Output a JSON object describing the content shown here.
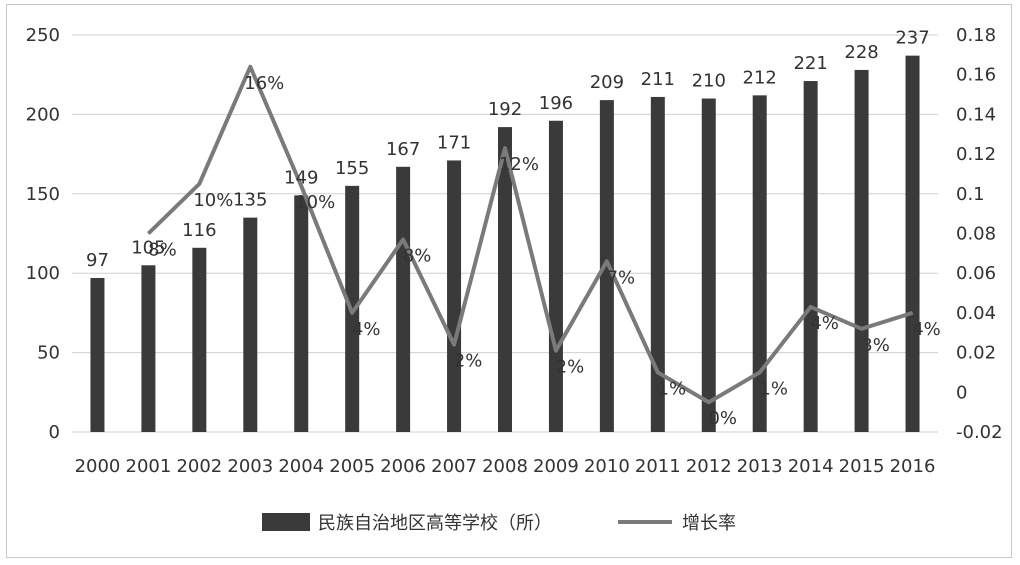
{
  "chart_data": {
    "type": "bar",
    "categories": [
      "2000",
      "2001",
      "2002",
      "2003",
      "2004",
      "2005",
      "2006",
      "2007",
      "2008",
      "2009",
      "2010",
      "2011",
      "2012",
      "2013",
      "2014",
      "2015",
      "2016"
    ],
    "series": [
      {
        "name": "民族自治地区高等学校（所）",
        "type": "bar",
        "axis": "left",
        "values": [
          97,
          105,
          116,
          135,
          149,
          155,
          167,
          171,
          192,
          196,
          209,
          211,
          210,
          212,
          221,
          228,
          237
        ],
        "labels": [
          "97",
          "105",
          "116",
          "135",
          "149",
          "155",
          "167",
          "171",
          "192",
          "196",
          "209",
          "211",
          "210",
          "212",
          "221",
          "228",
          "237"
        ]
      },
      {
        "name": "增长率",
        "type": "line",
        "axis": "right",
        "values": [
          null,
          0.08,
          0.105,
          0.164,
          0.104,
          0.04,
          0.077,
          0.024,
          0.123,
          0.021,
          0.066,
          0.01,
          -0.005,
          0.01,
          0.043,
          0.032,
          0.04
        ],
        "labels": [
          "",
          "8%",
          "10%",
          "16%",
          "10%",
          "4%",
          "8%",
          "2%",
          "12%",
          "2%",
          "7%",
          "1%",
          "0%",
          "1%",
          "4%",
          "3%",
          "4%"
        ]
      }
    ],
    "y_left": {
      "min": 0,
      "max": 250,
      "ticks": [
        "0",
        "50",
        "100",
        "150",
        "200",
        "250"
      ]
    },
    "y_right": {
      "min": -0.02,
      "max": 0.18,
      "ticks": [
        "-0.02",
        "0",
        "0.02",
        "0.04",
        "0.06",
        "0.08",
        "0.1",
        "0.12",
        "0.14",
        "0.16",
        "0.18"
      ]
    },
    "grid": true,
    "legend_position": "bottom",
    "colors": {
      "bar": "#3a3a3a",
      "line": "#7a7a7a",
      "grid": "#d0d0d0",
      "text": "#333333"
    }
  }
}
